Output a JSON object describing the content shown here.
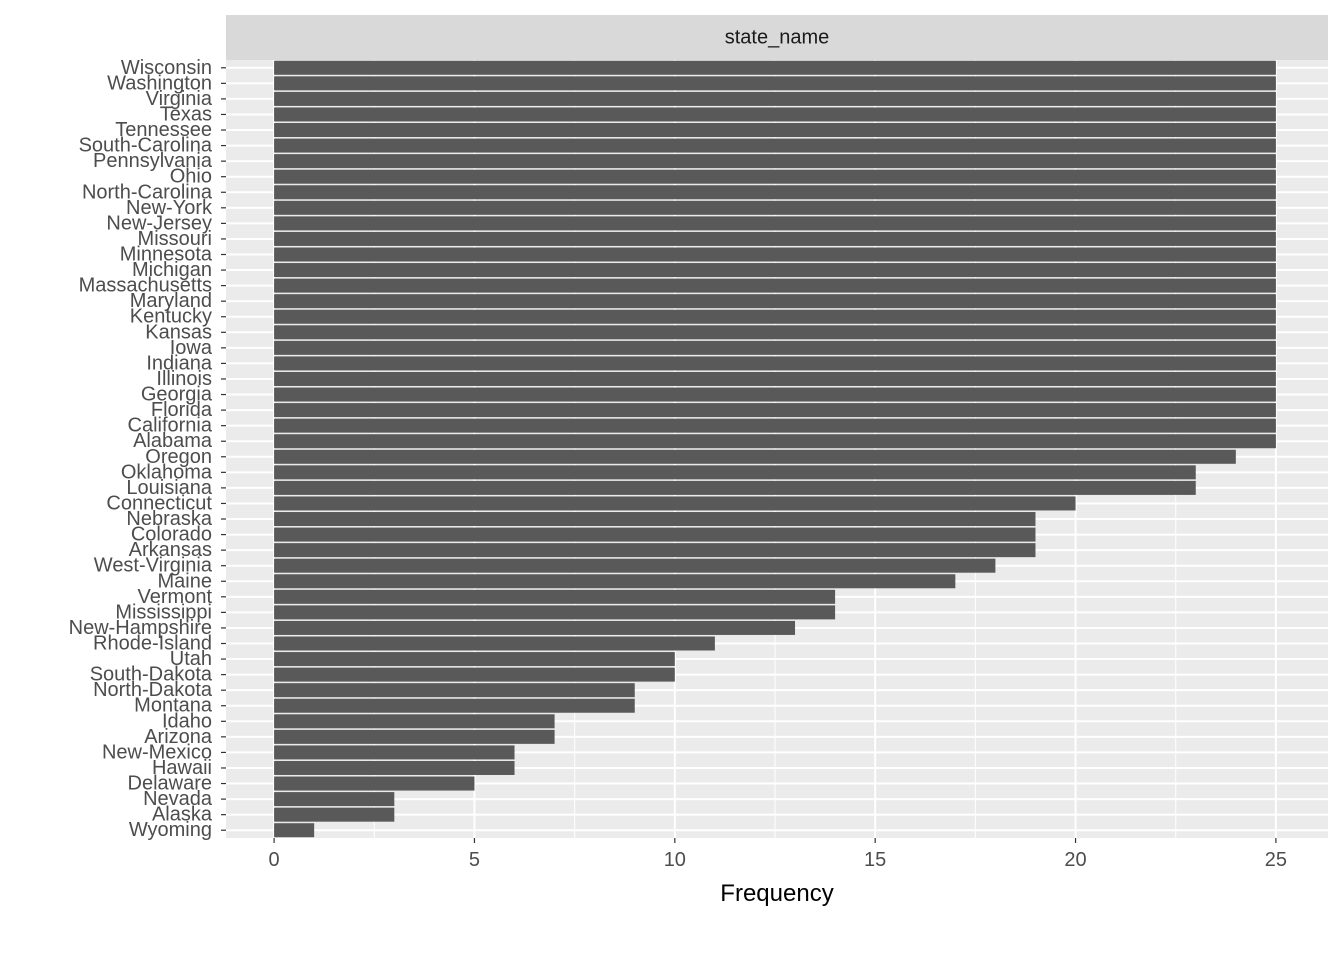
{
  "colors": {
    "panel_background": "#ebebeb",
    "grid_major": "#ffffff",
    "strip_background": "#d9d9d9",
    "bar_fill": "#595959",
    "tick_color": "#333333",
    "tick_label_color": "#4d4d4d"
  },
  "chart_data": {
    "type": "bar",
    "orientation": "horizontal",
    "facet_label": "state_name",
    "xlabel": "Frequency",
    "ylabel": "",
    "xlim": [
      -1.2,
      26.3
    ],
    "x_ticks": [
      "0",
      "5",
      "10",
      "15",
      "20",
      "25"
    ],
    "grid": true,
    "categories": [
      "Wisconsin",
      "Washington",
      "Virginia",
      "Texas",
      "Tennessee",
      "South-Carolina",
      "Pennsylvania",
      "Ohio",
      "North-Carolina",
      "New-York",
      "New-Jersey",
      "Missouri",
      "Minnesota",
      "Michigan",
      "Massachusetts",
      "Maryland",
      "Kentucky",
      "Kansas",
      "Iowa",
      "Indiana",
      "Illinois",
      "Georgia",
      "Florida",
      "California",
      "Alabama",
      "Oregon",
      "Oklahoma",
      "Louisiana",
      "Connecticut",
      "Nebraska",
      "Colorado",
      "Arkansas",
      "West-Virginia",
      "Maine",
      "Vermont",
      "Mississippi",
      "New-Hampshire",
      "Rhode-Island",
      "Utah",
      "South-Dakota",
      "North-Dakota",
      "Montana",
      "Idaho",
      "Arizona",
      "New-Mexico",
      "Hawaii",
      "Delaware",
      "Nevada",
      "Alaska",
      "Wyoming"
    ],
    "values": [
      25,
      25,
      25,
      25,
      25,
      25,
      25,
      25,
      25,
      25,
      25,
      25,
      25,
      25,
      25,
      25,
      25,
      25,
      25,
      25,
      25,
      25,
      25,
      25,
      25,
      24,
      23,
      23,
      20,
      19,
      19,
      19,
      18,
      17,
      14,
      14,
      13,
      11,
      10,
      10,
      9,
      9,
      7,
      7,
      6,
      6,
      5,
      3,
      3,
      1
    ]
  }
}
